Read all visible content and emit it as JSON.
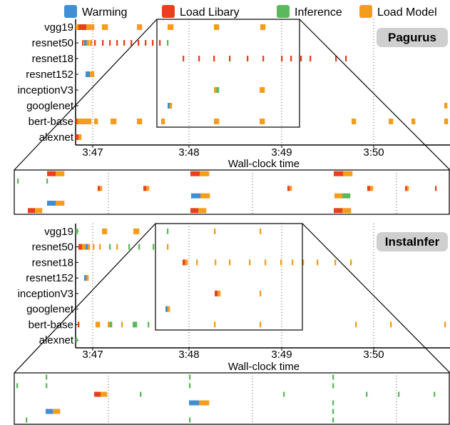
{
  "legend": [
    {
      "label": "Warming",
      "color": "#3f8fd2"
    },
    {
      "label": "Load Libary",
      "color": "#e8401c"
    },
    {
      "label": "Inference",
      "color": "#5cb85c"
    },
    {
      "label": "Load Model",
      "color": "#f59c1a"
    }
  ],
  "chart_data": [
    {
      "type": "timeline",
      "title": "Pagurus",
      "xlabel": "Wall-clock time",
      "ylabel": "",
      "x_ticks": [
        "3:47",
        "3:48",
        "3:49",
        "3:50"
      ],
      "models": [
        "vgg19",
        "resnet50",
        "resnet18",
        "resnet152",
        "inceptionV3",
        "googlenet",
        "bert-base",
        "alexnet"
      ],
      "zoom_window": [
        "3:47:45",
        "3:49:12"
      ]
    },
    {
      "type": "timeline",
      "title": "InstaInfer",
      "xlabel": "Wall-clock time",
      "ylabel": "",
      "x_ticks": [
        "3:47",
        "3:48",
        "3:49",
        "3:50"
      ],
      "models": [
        "vgg19",
        "resnet50",
        "resnet18",
        "resnet152",
        "inceptionV3",
        "googlenet",
        "bert-base",
        "alexnet"
      ],
      "zoom_window": [
        "3:47:45",
        "3:49:12"
      ]
    }
  ]
}
